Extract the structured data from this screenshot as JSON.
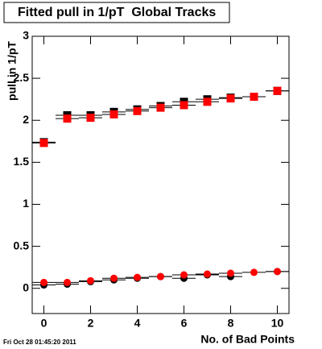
{
  "chart_data": {
    "type": "scatter",
    "title": "Fitted pull in 1/pT  Global Tracks",
    "y_label": "pull in 1/pT",
    "x_label": "No. of Bad Points",
    "footer": "Fri Oct 28 01:45:20 2011",
    "x": [
      0,
      1,
      2,
      3,
      4,
      5,
      6,
      7,
      8,
      9,
      10
    ],
    "x_error": 0.5,
    "series": [
      {
        "marker": "square",
        "color": "#000000",
        "values": [
          1.74,
          2.06,
          2.06,
          2.1,
          2.13,
          2.17,
          2.22,
          2.25,
          2.27,
          null,
          2.35
        ]
      },
      {
        "marker": "square",
        "color": "#ff0000",
        "values": [
          1.73,
          2.02,
          2.03,
          2.07,
          2.11,
          2.15,
          2.18,
          2.22,
          2.26,
          2.28,
          2.35
        ]
      },
      {
        "marker": "circle",
        "color": "#000000",
        "values": [
          0.04,
          0.05,
          0.08,
          0.1,
          0.12,
          0.14,
          0.12,
          0.16,
          0.14,
          null,
          0.2
        ]
      },
      {
        "marker": "circle",
        "color": "#ff0000",
        "values": [
          0.07,
          0.07,
          0.09,
          0.12,
          0.13,
          0.14,
          0.16,
          0.17,
          0.18,
          0.19,
          0.2
        ]
      }
    ],
    "xlim": [
      -0.5,
      10.5
    ],
    "ylim": [
      -0.3,
      3
    ],
    "xticks": [
      0,
      2,
      4,
      6,
      8,
      10
    ],
    "yticks": [
      0,
      0.5,
      1,
      1.5,
      2,
      2.5,
      3
    ]
  }
}
